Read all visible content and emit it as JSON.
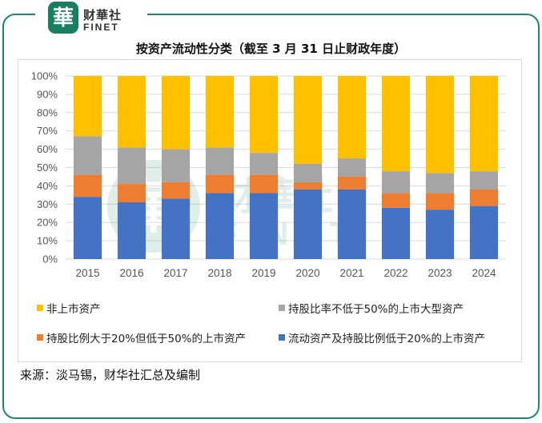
{
  "header": {
    "logo_seal_text": "華",
    "logo_cn": "财華社",
    "logo_en": "FINET",
    "watermark_cn": "财華社",
    "watermark_en": "FINET"
  },
  "colors": {
    "frame": "#1a8a6a",
    "non_listed": "#FFC000",
    "large_listed": "#A5A5A5",
    "mid_listed": "#ED7D31",
    "liquid": "#4472C4"
  },
  "chart_data": {
    "type": "bar",
    "stacked": true,
    "percent": true,
    "title": "按资产流动性分类（截至 3 月 31 日止财政年度）",
    "categories": [
      "2015",
      "2016",
      "2017",
      "2018",
      "2019",
      "2020",
      "2021",
      "2022",
      "2023",
      "2024"
    ],
    "ylim": [
      0,
      100
    ],
    "yticks": [
      "0%",
      "10%",
      "20%",
      "30%",
      "40%",
      "50%",
      "60%",
      "70%",
      "80%",
      "90%",
      "100%"
    ],
    "grid": true,
    "legend_position": "bottom",
    "series": [
      {
        "name": "流动资产及持股比例低于20%的上市资产",
        "color": "#4472C4",
        "values": [
          34,
          31,
          33,
          36,
          36,
          38,
          38,
          28,
          27,
          29
        ]
      },
      {
        "name": "持股比例大于20%但低于50%的上市资产",
        "color": "#ED7D31",
        "values": [
          12,
          10,
          9,
          10,
          10,
          4,
          7,
          8,
          9,
          9
        ]
      },
      {
        "name": "持股比率不低于50%的上市大型资产",
        "color": "#A5A5A5",
        "values": [
          21,
          20,
          18,
          15,
          12,
          10,
          10,
          12,
          11,
          10
        ]
      },
      {
        "name": "非上市资产",
        "color": "#FFC000",
        "values": [
          33,
          39,
          40,
          39,
          42,
          48,
          45,
          52,
          53,
          52
        ]
      }
    ]
  },
  "source": "来源：淡马锡，财华社汇总及编制"
}
